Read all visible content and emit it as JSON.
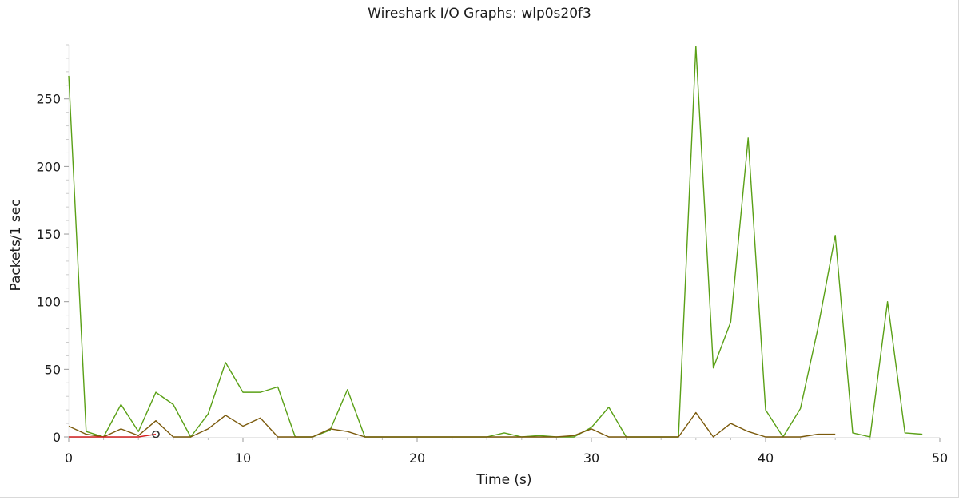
{
  "chart_data": {
    "type": "line",
    "title": "Wireshark I/O Graphs: wlp0s20f3",
    "xlabel": "Time (s)",
    "ylabel": "Packets/1 sec",
    "xlim": [
      0,
      50
    ],
    "ylim": [
      0,
      290
    ],
    "x_ticks": [
      0,
      10,
      20,
      30,
      40,
      50
    ],
    "y_ticks": [
      0,
      50,
      100,
      150,
      200,
      250
    ],
    "grid": false,
    "legend": "none",
    "series": [
      {
        "color": "#5aa016",
        "points": [
          [
            0,
            267
          ],
          [
            1,
            4
          ],
          [
            2,
            0
          ],
          [
            3,
            24
          ],
          [
            4,
            4
          ],
          [
            5,
            33
          ],
          [
            6,
            24
          ],
          [
            7,
            0
          ],
          [
            8,
            17
          ],
          [
            9,
            55
          ],
          [
            10,
            33
          ],
          [
            11,
            33
          ],
          [
            12,
            37
          ],
          [
            13,
            0
          ],
          [
            14,
            0
          ],
          [
            15,
            5
          ],
          [
            16,
            35
          ],
          [
            17,
            0
          ],
          [
            18,
            0
          ],
          [
            19,
            0
          ],
          [
            20,
            0
          ],
          [
            21,
            0
          ],
          [
            22,
            0
          ],
          [
            23,
            0
          ],
          [
            24,
            0
          ],
          [
            25,
            3
          ],
          [
            26,
            0
          ],
          [
            27,
            1
          ],
          [
            28,
            0
          ],
          [
            29,
            0
          ],
          [
            30,
            7
          ],
          [
            31,
            22
          ],
          [
            32,
            0
          ],
          [
            33,
            0
          ],
          [
            34,
            0
          ],
          [
            35,
            0
          ],
          [
            36,
            289
          ],
          [
            37,
            51
          ],
          [
            38,
            85
          ],
          [
            39,
            221
          ],
          [
            40,
            20
          ],
          [
            41,
            0
          ],
          [
            42,
            21
          ],
          [
            43,
            80
          ],
          [
            44,
            149
          ],
          [
            45,
            3
          ],
          [
            46,
            0
          ],
          [
            47,
            100
          ],
          [
            48,
            3
          ],
          [
            49,
            2
          ]
        ]
      },
      {
        "color": "#7b5a0c",
        "points": [
          [
            0,
            8
          ],
          [
            1,
            2
          ],
          [
            2,
            0
          ],
          [
            3,
            6
          ],
          [
            4,
            1
          ],
          [
            5,
            12
          ],
          [
            6,
            0
          ],
          [
            7,
            0
          ],
          [
            8,
            6
          ],
          [
            9,
            16
          ],
          [
            10,
            8
          ],
          [
            11,
            14
          ],
          [
            12,
            0
          ],
          [
            13,
            0
          ],
          [
            14,
            0
          ],
          [
            15,
            6
          ],
          [
            16,
            4
          ],
          [
            17,
            0
          ],
          [
            18,
            0
          ],
          [
            19,
            0
          ],
          [
            20,
            0
          ],
          [
            21,
            0
          ],
          [
            22,
            0
          ],
          [
            23,
            0
          ],
          [
            24,
            0
          ],
          [
            25,
            0
          ],
          [
            26,
            0
          ],
          [
            27,
            0
          ],
          [
            28,
            0
          ],
          [
            29,
            1
          ],
          [
            30,
            6
          ],
          [
            31,
            0
          ],
          [
            32,
            0
          ],
          [
            33,
            0
          ],
          [
            34,
            0
          ],
          [
            35,
            0
          ],
          [
            36,
            18
          ],
          [
            37,
            0
          ],
          [
            38,
            10
          ],
          [
            39,
            4
          ],
          [
            40,
            0
          ],
          [
            41,
            0
          ],
          [
            42,
            0
          ],
          [
            43,
            2
          ],
          [
            44,
            2
          ]
        ]
      },
      {
        "color": "#d42020",
        "points": [
          [
            0,
            0
          ],
          [
            1,
            0
          ],
          [
            2,
            0
          ],
          [
            3,
            0
          ],
          [
            4,
            0
          ],
          [
            5,
            2
          ]
        ]
      }
    ],
    "markers": [
      {
        "x": 5,
        "y": 2,
        "shape": "circle",
        "color": "#333333"
      }
    ]
  }
}
